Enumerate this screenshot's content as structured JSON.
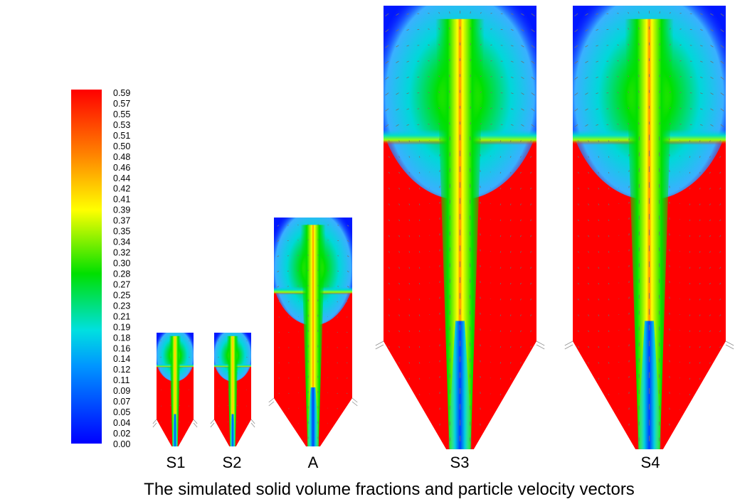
{
  "colorbar": {
    "ticks": [
      "0.59",
      "0.57",
      "0.55",
      "0.53",
      "0.51",
      "0.50",
      "0.48",
      "0.46",
      "0.44",
      "0.42",
      "0.41",
      "0.39",
      "0.37",
      "0.35",
      "0.34",
      "0.32",
      "0.30",
      "0.28",
      "0.27",
      "0.25",
      "0.23",
      "0.21",
      "0.19",
      "0.18",
      "0.16",
      "0.14",
      "0.12",
      "0.11",
      "0.09",
      "0.07",
      "0.05",
      "0.04",
      "0.02",
      "0.00"
    ],
    "colors": [
      "#0000ff",
      "#0096ff",
      "#00e0e0",
      "#00e000",
      "#ffff00",
      "#ff8000",
      "#ff0000"
    ]
  },
  "panels": [
    {
      "label": "S1"
    },
    {
      "label": "S2"
    },
    {
      "label": "A"
    },
    {
      "label": "S3"
    },
    {
      "label": "S4"
    }
  ],
  "caption": "The simulated solid volume fractions and particle velocity vectors"
}
